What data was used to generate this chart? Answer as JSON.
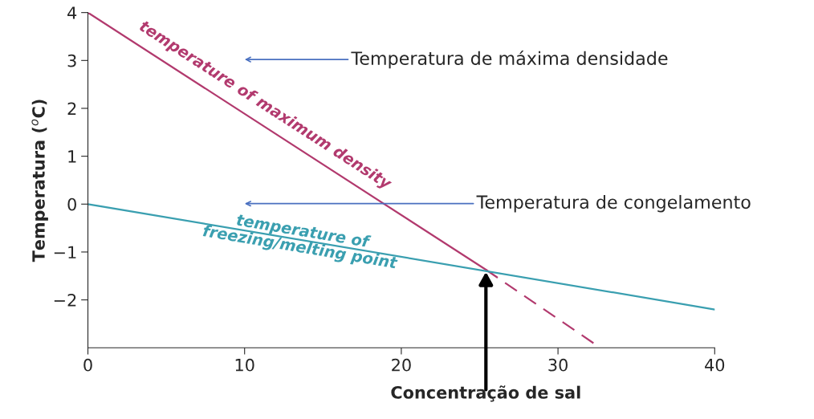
{
  "chart_data": {
    "type": "line",
    "xlabel": "Concentração de sal",
    "ylabel": "Temperatura ($^{o}$C)",
    "xlim": [
      0,
      40
    ],
    "ylim": [
      -3,
      4
    ],
    "xticks": [
      0,
      10,
      20,
      30,
      40
    ],
    "yticks": [
      4,
      3,
      2,
      1,
      0,
      {
        "value": -1,
        "label": "−1"
      },
      {
        "value": -2,
        "label": "−2"
      }
    ],
    "grid": false,
    "marker": "none",
    "series": [
      {
        "name": "temperature of maximum density",
        "color": "#b23a6e",
        "x": [
          0,
          25.4
        ],
        "values": [
          4,
          -1.37
        ],
        "line_style": "solid"
      },
      {
        "color": "#b23a6e",
        "x": [
          25.4,
          32.7
        ],
        "values": [
          -1.37,
          -3
        ],
        "line_style": "dashed"
      },
      {
        "name": "temperature of\nfreezing/melting point",
        "color": "#3a9fb0",
        "x": [
          0,
          40
        ],
        "values": [
          0,
          -2.2
        ],
        "line_style": "solid"
      }
    ],
    "annotations": [
      "Temperatura de máxima densidade",
      "Temperatura de congelamento"
    ]
  }
}
